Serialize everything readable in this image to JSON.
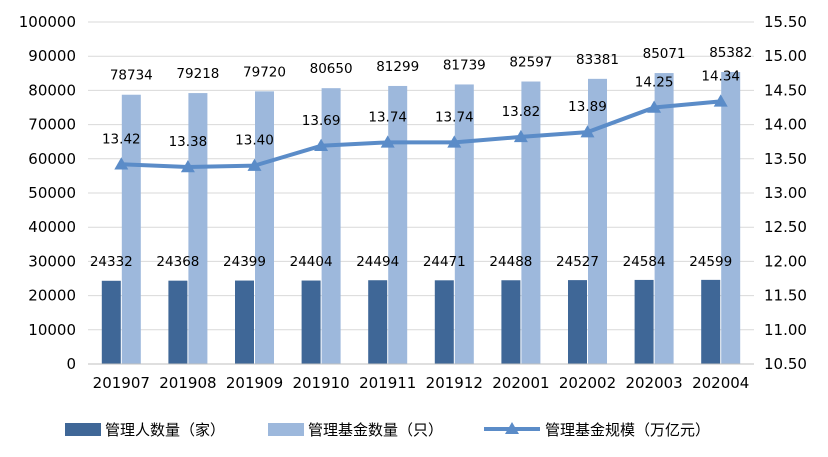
{
  "chart_data": {
    "type": "bar",
    "categories": [
      "201907",
      "201908",
      "201909",
      "201910",
      "201911",
      "201912",
      "202001",
      "202002",
      "202003",
      "202004"
    ],
    "series": [
      {
        "name": "管理人数量（家）",
        "kind": "bar",
        "axis": "left",
        "color": "#3F6797",
        "values": [
          24332,
          24368,
          24399,
          24404,
          24494,
          24471,
          24488,
          24527,
          24584,
          24599
        ]
      },
      {
        "name": "管理基金数量（只）",
        "kind": "bar",
        "axis": "left",
        "color": "#9DB8DC",
        "values": [
          78734,
          79218,
          79720,
          80650,
          81299,
          81739,
          82597,
          83381,
          85071,
          85382
        ]
      },
      {
        "name": "管理基金规模（万亿元）",
        "kind": "line",
        "marker": "triangle",
        "axis": "right",
        "color": "#5B8CC8",
        "values": [
          13.42,
          13.38,
          13.4,
          13.69,
          13.74,
          13.74,
          13.82,
          13.89,
          14.25,
          14.34
        ],
        "labels": [
          "13.42",
          "13.38",
          "13.40",
          "13.69",
          "13.74",
          "13.74",
          "13.82",
          "13.89",
          "14.25",
          "14.34"
        ]
      }
    ],
    "y_left": {
      "ylim": [
        0,
        100000
      ],
      "ticks": [
        "0",
        "10000",
        "20000",
        "30000",
        "40000",
        "50000",
        "60000",
        "70000",
        "80000",
        "90000",
        "100000"
      ]
    },
    "y_right": {
      "ylim": [
        10.5,
        15.5
      ],
      "ticks": [
        "10.50",
        "11.00",
        "11.50",
        "12.00",
        "12.50",
        "13.00",
        "13.50",
        "14.00",
        "14.50",
        "15.00",
        "15.50"
      ]
    },
    "grid": true,
    "legend_position": "bottom",
    "title": "",
    "xlabel": "",
    "ylabel": ""
  }
}
